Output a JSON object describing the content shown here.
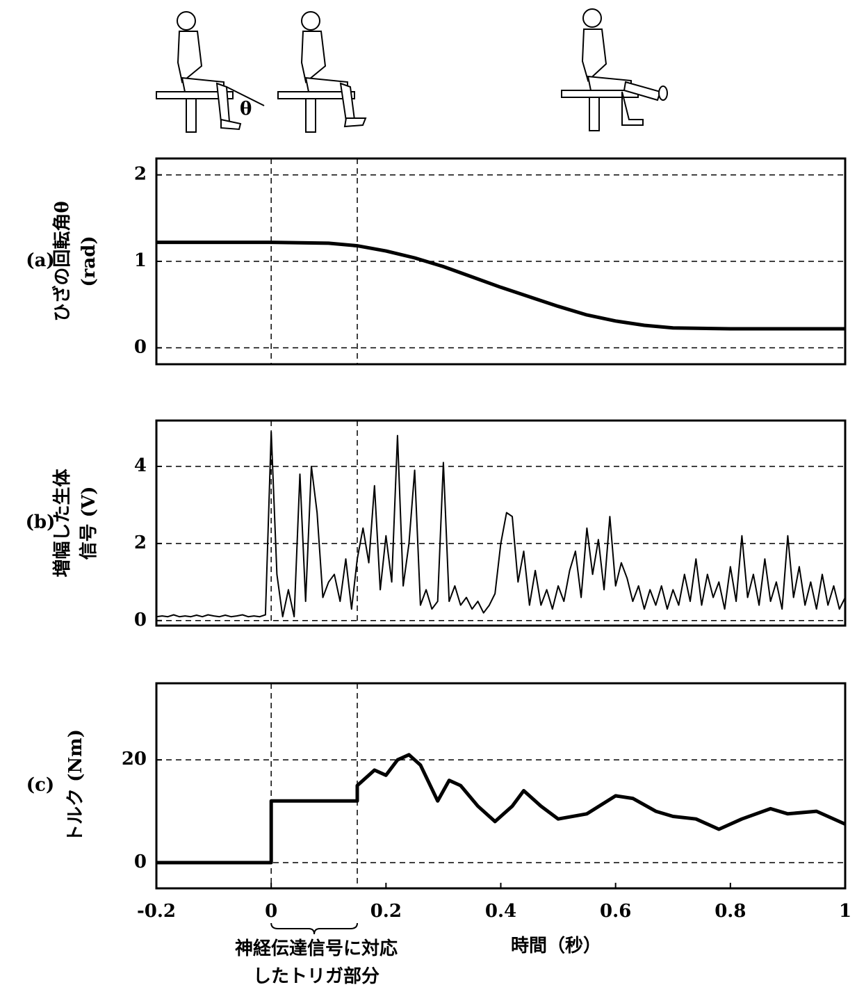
{
  "figure_label": "θ",
  "chart_data": [
    {
      "type": "line",
      "panel_label": "(a)",
      "ylabel": [
        "ひざの回転角θ",
        "(rad)"
      ],
      "x": [
        -0.2,
        0,
        0.1,
        0.15,
        0.2,
        0.25,
        0.3,
        0.35,
        0.4,
        0.45,
        0.5,
        0.55,
        0.6,
        0.65,
        0.7,
        0.8,
        0.9,
        1
      ],
      "values": [
        1.22,
        1.22,
        1.21,
        1.18,
        1.12,
        1.04,
        0.94,
        0.82,
        0.7,
        0.59,
        0.48,
        0.38,
        0.31,
        0.26,
        0.23,
        0.22,
        0.22,
        0.22
      ],
      "color": "#000000",
      "xlim": [
        -0.2,
        1
      ],
      "ylim": [
        -0.19,
        2.19
      ],
      "yticks": [
        0,
        1,
        2
      ],
      "grid": true,
      "vlines": [
        0,
        0.15
      ]
    },
    {
      "type": "line",
      "panel_label": "(b)",
      "ylabel": [
        "増幅した生体",
        "信号 (V)"
      ],
      "x": [
        -0.2,
        -0.19,
        -0.18,
        -0.17,
        -0.16,
        -0.15,
        -0.14,
        -0.13,
        -0.12,
        -0.11,
        -0.1,
        -0.09,
        -0.08,
        -0.07,
        -0.06,
        -0.05,
        -0.04,
        -0.03,
        -0.02,
        -0.01,
        0,
        0.01,
        0.02,
        0.03,
        0.04,
        0.05,
        0.06,
        0.07,
        0.08,
        0.09,
        0.1,
        0.11,
        0.12,
        0.13,
        0.14,
        0.15,
        0.16,
        0.17,
        0.18,
        0.19,
        0.2,
        0.21,
        0.22,
        0.23,
        0.24,
        0.25,
        0.26,
        0.27,
        0.28,
        0.29,
        0.3,
        0.31,
        0.32,
        0.33,
        0.34,
        0.35,
        0.36,
        0.37,
        0.38,
        0.39,
        0.4,
        0.41,
        0.42,
        0.43,
        0.44,
        0.45,
        0.46,
        0.47,
        0.48,
        0.49,
        0.5,
        0.51,
        0.52,
        0.53,
        0.54,
        0.55,
        0.56,
        0.57,
        0.58,
        0.59,
        0.6,
        0.61,
        0.62,
        0.63,
        0.64,
        0.65,
        0.66,
        0.67,
        0.68,
        0.69,
        0.7,
        0.71,
        0.72,
        0.73,
        0.74,
        0.75,
        0.76,
        0.77,
        0.78,
        0.79,
        0.8,
        0.81,
        0.82,
        0.83,
        0.84,
        0.85,
        0.86,
        0.87,
        0.88,
        0.89,
        0.9,
        0.91,
        0.92,
        0.93,
        0.94,
        0.95,
        0.96,
        0.97,
        0.98,
        0.99,
        1
      ],
      "values": [
        0.1,
        0.12,
        0.1,
        0.15,
        0.1,
        0.12,
        0.1,
        0.14,
        0.1,
        0.15,
        0.12,
        0.1,
        0.14,
        0.1,
        0.12,
        0.15,
        0.1,
        0.12,
        0.1,
        0.15,
        4.9,
        1.2,
        0.1,
        0.8,
        0.1,
        3.8,
        0.5,
        4.0,
        2.8,
        0.6,
        1.0,
        1.2,
        0.5,
        1.6,
        0.3,
        1.6,
        2.4,
        1.5,
        3.5,
        0.8,
        2.2,
        1.0,
        4.8,
        0.9,
        2.0,
        3.9,
        0.4,
        0.8,
        0.3,
        0.5,
        4.1,
        0.5,
        0.9,
        0.4,
        0.6,
        0.3,
        0.5,
        0.2,
        0.4,
        0.7,
        2.0,
        2.8,
        2.7,
        1.0,
        1.8,
        0.4,
        1.3,
        0.4,
        0.8,
        0.3,
        0.9,
        0.5,
        1.3,
        1.8,
        0.6,
        2.4,
        1.2,
        2.1,
        0.8,
        2.7,
        0.9,
        1.5,
        1.1,
        0.5,
        0.9,
        0.3,
        0.8,
        0.4,
        0.9,
        0.3,
        0.8,
        0.4,
        1.2,
        0.5,
        1.6,
        0.4,
        1.2,
        0.6,
        1.0,
        0.3,
        1.4,
        0.5,
        2.2,
        0.6,
        1.2,
        0.4,
        1.6,
        0.5,
        1.0,
        0.3,
        2.2,
        0.6,
        1.4,
        0.4,
        1.0,
        0.3,
        1.2,
        0.4,
        0.9,
        0.3,
        0.6
      ],
      "color": "#000000",
      "xlim": [
        -0.2,
        1
      ],
      "ylim": [
        -0.13,
        5.19
      ],
      "yticks": [
        0,
        2,
        4
      ],
      "grid": true,
      "vlines": [
        0,
        0.15
      ]
    },
    {
      "type": "line",
      "panel_label": "(c)",
      "ylabel": [
        "トルク (Nm)"
      ],
      "xlabel": "時間（秒）",
      "annotation": [
        "神経伝達信号に対応",
        "したトリガ部分"
      ],
      "x": [
        -0.2,
        0,
        0,
        0.15,
        0.15,
        0.17,
        0.18,
        0.2,
        0.22,
        0.24,
        0.26,
        0.29,
        0.31,
        0.33,
        0.36,
        0.39,
        0.42,
        0.44,
        0.47,
        0.5,
        0.55,
        0.6,
        0.63,
        0.67,
        0.7,
        0.74,
        0.78,
        0.82,
        0.87,
        0.9,
        0.95,
        1
      ],
      "values": [
        0,
        0,
        12,
        12,
        15,
        17,
        18,
        17,
        20,
        21,
        19,
        12,
        16,
        15,
        11,
        8,
        11,
        14,
        11,
        8.5,
        9.5,
        13,
        12.5,
        10,
        9,
        8.5,
        6.5,
        8.5,
        10.5,
        9.5,
        10,
        7.5
      ],
      "color": "#000000",
      "xlim": [
        -0.2,
        1
      ],
      "ylim": [
        -5,
        34.9
      ],
      "yticks": [
        0,
        20
      ],
      "grid": true,
      "vlines": [
        0,
        0.15
      ],
      "xticks": [
        -0.2,
        0,
        0.2,
        0.4,
        0.6,
        0.8,
        1
      ]
    }
  ]
}
